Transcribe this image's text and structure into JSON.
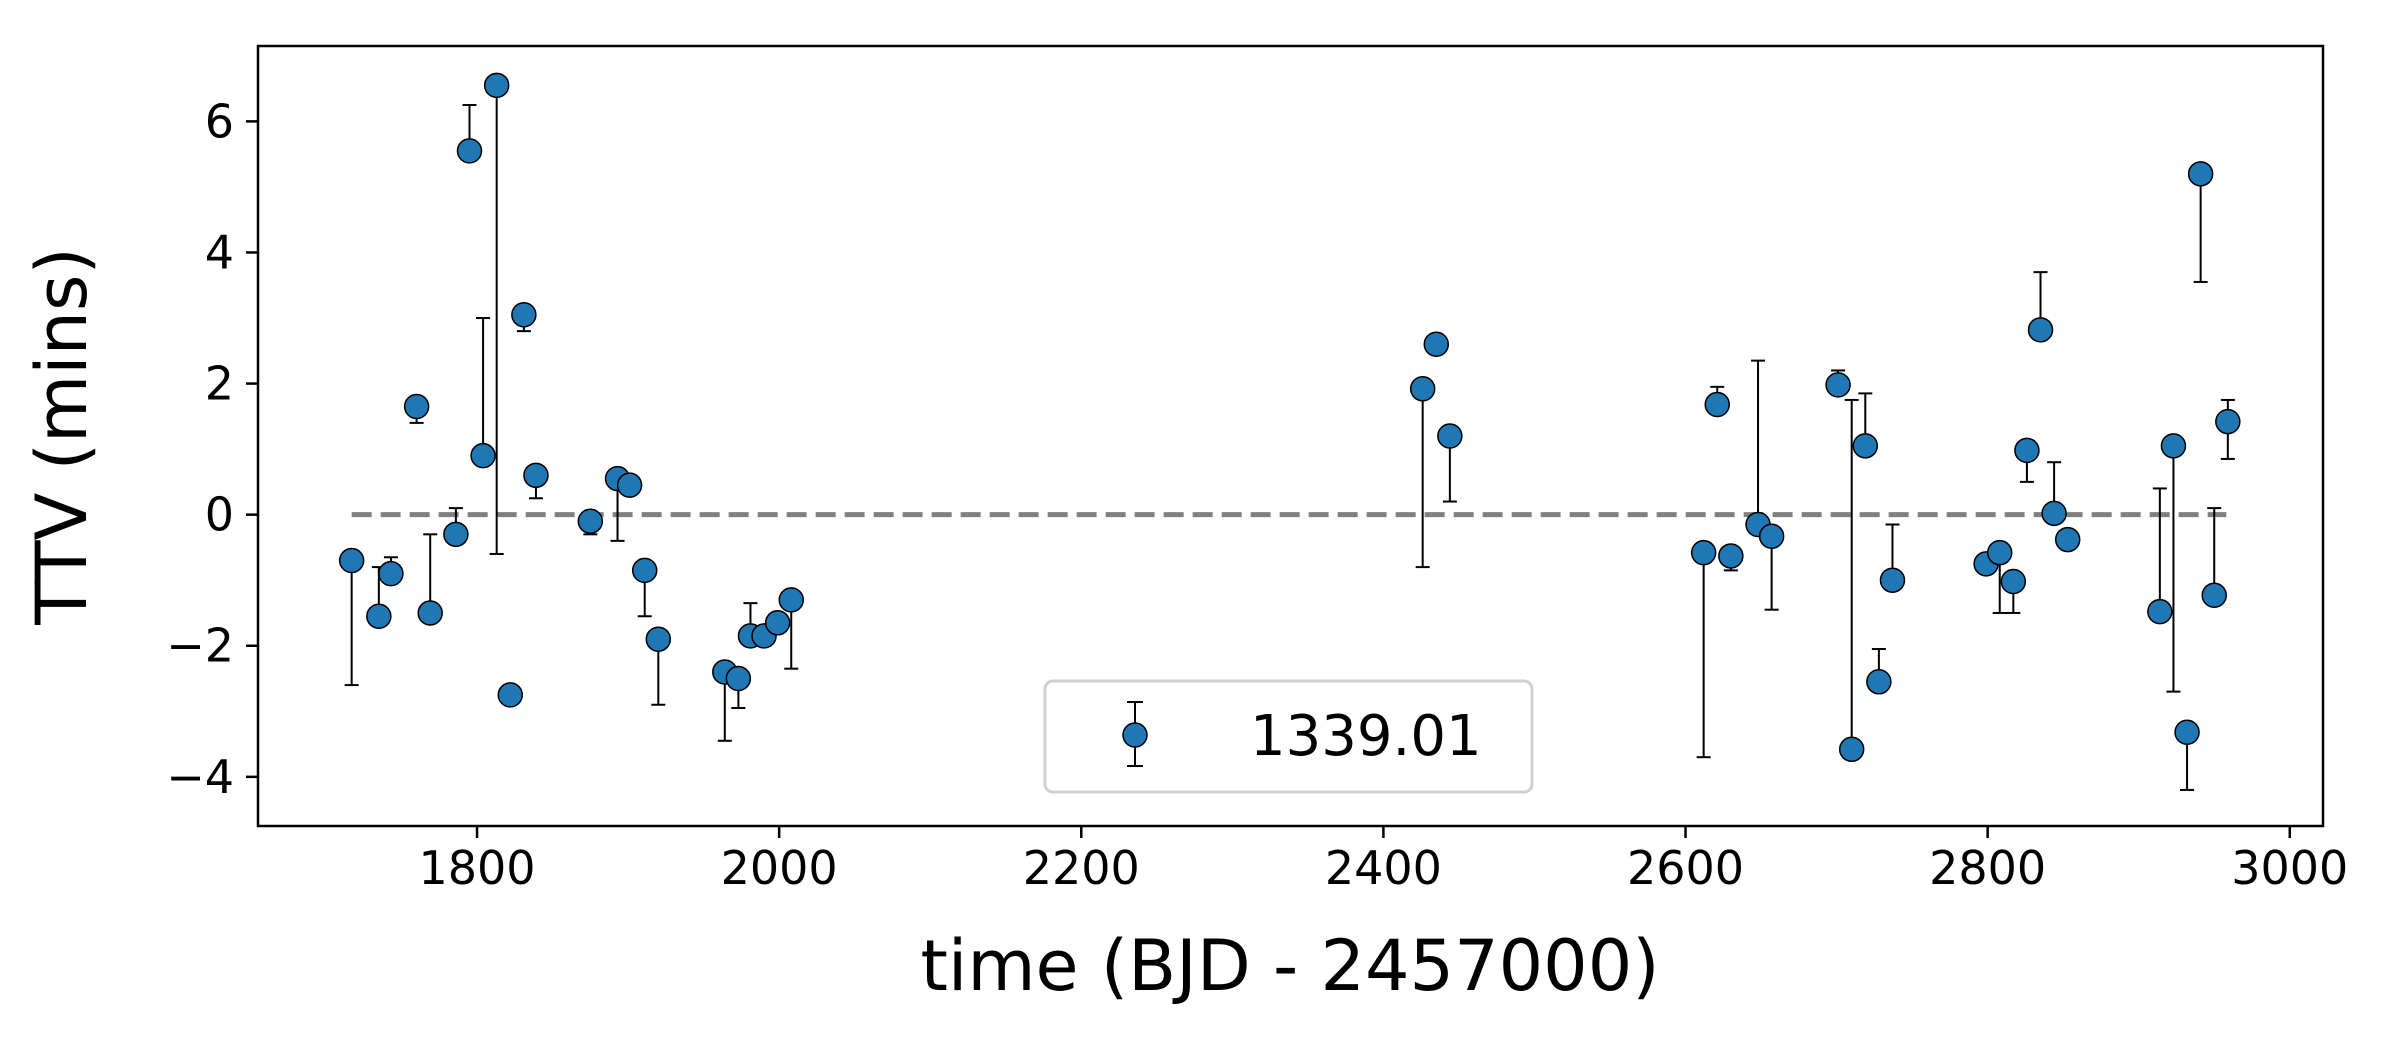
{
  "chart_data": {
    "type": "scatter",
    "xlabel": "time (BJD - 2457000)",
    "ylabel": "TTV (mins)",
    "xlim": [
      1655,
      3022
    ],
    "ylim": [
      -4.75,
      7.15
    ],
    "xticks": [
      1800,
      2000,
      2200,
      2400,
      2600,
      2800,
      3000
    ],
    "yticks": [
      -4,
      -2,
      0,
      2,
      4,
      6
    ],
    "ytick_labels": [
      "−4",
      "−2",
      "0",
      "2",
      "4",
      "6"
    ],
    "reference_line": {
      "y": 0,
      "x_range": [
        1717,
        2958
      ],
      "style": "dashed",
      "color": "#808080"
    },
    "legend": {
      "label": "1339.01",
      "position": "bottom-center"
    },
    "marker_color": "#1f77b4",
    "series": [
      {
        "name": "1339.01",
        "points": [
          {
            "x": 1717,
            "y": -0.7,
            "lo": -2.6,
            "hi": -0.7
          },
          {
            "x": 1735,
            "y": -1.55,
            "lo": -1.55,
            "hi": -0.8
          },
          {
            "x": 1743,
            "y": -0.9,
            "lo": -0.9,
            "hi": -0.65
          },
          {
            "x": 1760,
            "y": 1.65,
            "lo": 1.4,
            "hi": 1.65
          },
          {
            "x": 1769,
            "y": -1.5,
            "lo": -1.5,
            "hi": -0.3
          },
          {
            "x": 1786,
            "y": -0.3,
            "lo": -0.3,
            "hi": 0.1
          },
          {
            "x": 1795,
            "y": 5.55,
            "lo": 5.55,
            "hi": 6.25
          },
          {
            "x": 1804,
            "y": 0.9,
            "lo": 0.9,
            "hi": 3.0
          },
          {
            "x": 1813,
            "y": 6.55,
            "lo": -0.6,
            "hi": 6.55
          },
          {
            "x": 1822,
            "y": -2.75,
            "lo": -2.75,
            "hi": -2.75
          },
          {
            "x": 1831,
            "y": 3.05,
            "lo": 2.8,
            "hi": 3.05
          },
          {
            "x": 1839,
            "y": 0.6,
            "lo": 0.25,
            "hi": 0.6
          },
          {
            "x": 1875,
            "y": -0.1,
            "lo": -0.3,
            "hi": -0.1
          },
          {
            "x": 1893,
            "y": 0.55,
            "lo": -0.4,
            "hi": 0.55
          },
          {
            "x": 1901,
            "y": 0.45,
            "lo": 0.45,
            "hi": 0.45
          },
          {
            "x": 1911,
            "y": -0.85,
            "lo": -1.55,
            "hi": -0.85
          },
          {
            "x": 1920,
            "y": -1.9,
            "lo": -2.9,
            "hi": -1.9
          },
          {
            "x": 1964,
            "y": -2.4,
            "lo": -3.45,
            "hi": -2.4
          },
          {
            "x": 1973,
            "y": -2.5,
            "lo": -2.95,
            "hi": -2.5
          },
          {
            "x": 1981,
            "y": -1.85,
            "lo": -1.85,
            "hi": -1.35
          },
          {
            "x": 1990,
            "y": -1.85,
            "lo": -1.85,
            "hi": -1.85
          },
          {
            "x": 1999,
            "y": -1.65,
            "lo": -1.65,
            "hi": -1.65
          },
          {
            "x": 2008,
            "y": -1.3,
            "lo": -2.35,
            "hi": -1.3
          },
          {
            "x": 2426,
            "y": 1.92,
            "lo": -0.8,
            "hi": 1.92
          },
          {
            "x": 2435,
            "y": 2.6,
            "lo": 2.6,
            "hi": 2.75
          },
          {
            "x": 2444,
            "y": 1.2,
            "lo": 0.2,
            "hi": 1.2
          },
          {
            "x": 2612,
            "y": -0.58,
            "lo": -3.7,
            "hi": -0.58
          },
          {
            "x": 2621,
            "y": 1.68,
            "lo": 1.68,
            "hi": 1.95
          },
          {
            "x": 2630,
            "y": -0.63,
            "lo": -0.85,
            "hi": -0.63
          },
          {
            "x": 2648,
            "y": -0.15,
            "lo": -0.15,
            "hi": 2.35
          },
          {
            "x": 2657,
            "y": -0.33,
            "lo": -1.45,
            "hi": -0.33
          },
          {
            "x": 2701,
            "y": 1.98,
            "lo": 1.98,
            "hi": 2.2
          },
          {
            "x": 2710,
            "y": -3.58,
            "lo": -3.58,
            "hi": 1.75
          },
          {
            "x": 2719,
            "y": 1.05,
            "lo": 1.05,
            "hi": 1.85
          },
          {
            "x": 2728,
            "y": -2.55,
            "lo": -2.55,
            "hi": -2.05
          },
          {
            "x": 2737,
            "y": -1.0,
            "lo": -1.0,
            "hi": -0.15
          },
          {
            "x": 2799,
            "y": -0.75,
            "lo": -0.75,
            "hi": -0.75
          },
          {
            "x": 2808,
            "y": -0.58,
            "lo": -1.5,
            "hi": -0.58
          },
          {
            "x": 2817,
            "y": -1.02,
            "lo": -1.5,
            "hi": -1.02
          },
          {
            "x": 2826,
            "y": 0.98,
            "lo": 0.5,
            "hi": 0.98
          },
          {
            "x": 2835,
            "y": 2.82,
            "lo": 2.82,
            "hi": 3.7
          },
          {
            "x": 2844,
            "y": 0.02,
            "lo": 0.02,
            "hi": 0.8
          },
          {
            "x": 2853,
            "y": -0.38,
            "lo": -0.38,
            "hi": -0.38
          },
          {
            "x": 2914,
            "y": -1.48,
            "lo": -1.48,
            "hi": 0.4
          },
          {
            "x": 2923,
            "y": 1.05,
            "lo": -2.7,
            "hi": 1.05
          },
          {
            "x": 2932,
            "y": -3.32,
            "lo": -4.2,
            "hi": -3.32
          },
          {
            "x": 2941,
            "y": 5.2,
            "lo": 3.55,
            "hi": 5.2
          },
          {
            "x": 2950,
            "y": -1.23,
            "lo": -1.23,
            "hi": 0.1
          },
          {
            "x": 2959,
            "y": 1.42,
            "lo": 0.85,
            "hi": 1.75
          }
        ]
      }
    ]
  }
}
